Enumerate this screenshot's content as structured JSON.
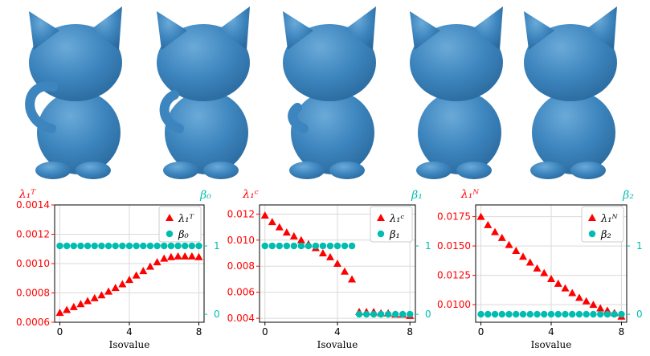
{
  "colors": {
    "render": "#3d85be",
    "render_shadow": "#2a6a9e",
    "left_axis": "#ff0000",
    "right_axis": "#00bdb0",
    "frame": "#000000",
    "grid": "#d9d9d9"
  },
  "renders": [
    {
      "name": "cat-render-1",
      "tail": "full"
    },
    {
      "name": "cat-render-2",
      "tail": "partial"
    },
    {
      "name": "cat-render-3",
      "tail": "short"
    },
    {
      "name": "cat-render-4",
      "tail": "none"
    },
    {
      "name": "cat-render-5",
      "tail": "none"
    }
  ],
  "chart_data": [
    {
      "type": "scatter",
      "xlabel": "Isovalue",
      "xlim": [
        -0.3,
        8.3
      ],
      "x_ticks": [
        "0",
        "4",
        "8"
      ],
      "ylim_left": [
        0.0006,
        0.0014
      ],
      "y_ticks_left": [
        "0.0006",
        "0.0008",
        "0.0010",
        "0.0012",
        "0.0014"
      ],
      "ylabel_left": "λ₁ᵀ",
      "ylabel_right": "β₀",
      "ylim_right": [
        -0.1167,
        1.6
      ],
      "y_ticks_right": [
        "0",
        "1"
      ],
      "grid": true,
      "legend_position": "top-right",
      "series": [
        {
          "name": "λ₁ᵀ",
          "marker": "triangle",
          "axis": "left",
          "x": [
            0,
            0.4,
            0.8,
            1.2,
            1.6,
            2.0,
            2.4,
            2.8,
            3.2,
            3.6,
            4.0,
            4.4,
            4.8,
            5.2,
            5.6,
            6.0,
            6.4,
            6.8,
            7.2,
            7.6,
            8.0
          ],
          "y": [
            0.000665,
            0.000685,
            0.000705,
            0.000725,
            0.000745,
            0.000765,
            0.000785,
            0.00081,
            0.000835,
            0.00086,
            0.00089,
            0.00092,
            0.00095,
            0.00098,
            0.00101,
            0.001035,
            0.001045,
            0.00105,
            0.00105,
            0.00105,
            0.001045
          ]
        },
        {
          "name": "β₀",
          "marker": "circle",
          "axis": "right",
          "x": [
            0,
            0.4,
            0.8,
            1.2,
            1.6,
            2.0,
            2.4,
            2.8,
            3.2,
            3.6,
            4.0,
            4.4,
            4.8,
            5.2,
            5.6,
            6.0,
            6.4,
            6.8,
            7.2,
            7.6,
            8.0
          ],
          "y": [
            1,
            1,
            1,
            1,
            1,
            1,
            1,
            1,
            1,
            1,
            1,
            1,
            1,
            1,
            1,
            1,
            1,
            1,
            1,
            1,
            1
          ]
        }
      ]
    },
    {
      "type": "scatter",
      "xlabel": "Isovalue",
      "xlim": [
        -0.3,
        8.3
      ],
      "x_ticks": [
        "0",
        "4",
        "8"
      ],
      "ylim_left": [
        0.0037,
        0.0127
      ],
      "y_ticks_left": [
        "0.004",
        "0.006",
        "0.008",
        "0.010",
        "0.012"
      ],
      "ylabel_left": "λ₁ᶜ",
      "ylabel_right": "β₁",
      "ylim_right": [
        -0.1167,
        1.6
      ],
      "y_ticks_right": [
        "0",
        "1"
      ],
      "grid": true,
      "legend_position": "top-right",
      "series": [
        {
          "name": "λ₁ᶜ",
          "marker": "triangle",
          "axis": "left",
          "x": [
            0,
            0.4,
            0.8,
            1.2,
            1.6,
            2.0,
            2.4,
            2.8,
            3.2,
            3.6,
            4.0,
            4.4,
            4.8,
            5.2,
            5.6,
            6.0,
            6.4,
            6.8,
            7.2,
            7.6,
            8.0
          ],
          "y": [
            0.0119,
            0.0114,
            0.011,
            0.0106,
            0.0103,
            0.01,
            0.0097,
            0.0094,
            0.009,
            0.0087,
            0.0082,
            0.0076,
            0.007,
            0.0045,
            0.0045,
            0.0045,
            0.0044,
            0.0044,
            0.0043,
            0.0043,
            0.0042
          ]
        },
        {
          "name": "β₁",
          "marker": "circle",
          "axis": "right",
          "x": [
            0,
            0.4,
            0.8,
            1.2,
            1.6,
            2.0,
            2.4,
            2.8,
            3.2,
            3.6,
            4.0,
            4.4,
            4.8,
            5.2,
            5.6,
            6.0,
            6.4,
            6.8,
            7.2,
            7.6,
            8.0
          ],
          "y": [
            1,
            1,
            1,
            1,
            1,
            1,
            1,
            1,
            1,
            1,
            1,
            1,
            1,
            0,
            0,
            0,
            0,
            0,
            0,
            0,
            0
          ]
        }
      ]
    },
    {
      "type": "scatter",
      "xlabel": "Isovalue",
      "xlim": [
        -0.3,
        8.3
      ],
      "x_ticks": [
        "0",
        "4",
        "8"
      ],
      "ylim_left": [
        0.0085,
        0.0185
      ],
      "y_ticks_left": [
        "0.0100",
        "0.0125",
        "0.0150",
        "0.0175"
      ],
      "ylabel_left": "λ₁ᴺ",
      "ylabel_right": "β₂",
      "ylim_right": [
        -0.1167,
        1.6
      ],
      "y_ticks_right": [
        "0",
        "1"
      ],
      "grid": true,
      "legend_position": "top-right",
      "series": [
        {
          "name": "λ₁ᴺ",
          "marker": "triangle",
          "axis": "left",
          "x": [
            0,
            0.4,
            0.8,
            1.2,
            1.6,
            2.0,
            2.4,
            2.8,
            3.2,
            3.6,
            4.0,
            4.4,
            4.8,
            5.2,
            5.6,
            6.0,
            6.4,
            6.8,
            7.2,
            7.6,
            8.0
          ],
          "y": [
            0.0175,
            0.0168,
            0.0162,
            0.0157,
            0.0151,
            0.0146,
            0.0141,
            0.0136,
            0.0131,
            0.0127,
            0.0122,
            0.0118,
            0.0114,
            0.011,
            0.0106,
            0.0103,
            0.01,
            0.0097,
            0.0095,
            0.0093,
            0.009
          ]
        },
        {
          "name": "β₂",
          "marker": "circle",
          "axis": "right",
          "x": [
            0,
            0.4,
            0.8,
            1.2,
            1.6,
            2.0,
            2.4,
            2.8,
            3.2,
            3.6,
            4.0,
            4.4,
            4.8,
            5.2,
            5.6,
            6.0,
            6.4,
            6.8,
            7.2,
            7.6,
            8.0
          ],
          "y": [
            0,
            0,
            0,
            0,
            0,
            0,
            0,
            0,
            0,
            0,
            0,
            0,
            0,
            0,
            0,
            0,
            0,
            0,
            0,
            0,
            0
          ]
        }
      ]
    }
  ]
}
